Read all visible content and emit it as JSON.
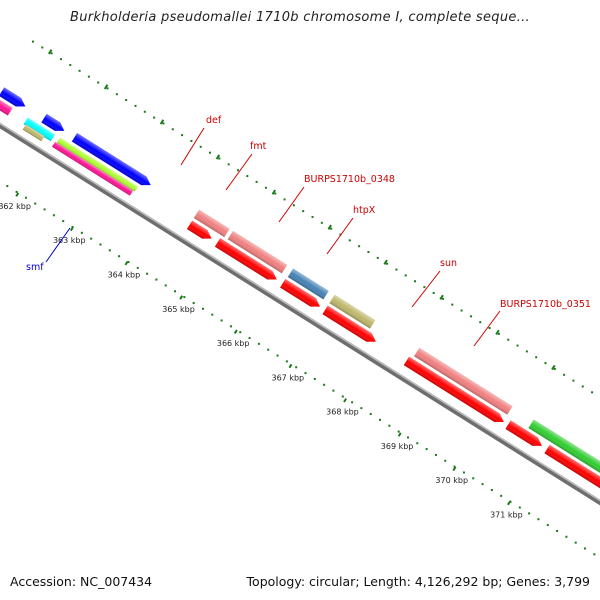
{
  "title": "Burkholderia pseudomallei 1710b chromosome I, complete seque...",
  "footer": {
    "accession_label": "Accession:",
    "accession": "NC_007434",
    "topology_label": "Topology:",
    "topology": "circular",
    "length_label": "Length:",
    "length": "4,126,292 bp",
    "genes_label": "Genes:",
    "genes": "3,799"
  },
  "colors": {
    "red": "#ff0000",
    "pink": "#f08080",
    "blue": "#0000ff",
    "steel": "#4682b4",
    "khaki": "#bdb76b",
    "green": "#32cd32",
    "magenta": "#ff1493",
    "cyan": "#00ffff",
    "lime": "#adff2f",
    "tick": "#1a7a1a",
    "label_red": "#cc0000",
    "label_blue": "#0000cc",
    "backbone": "#808080"
  },
  "ticks": [
    {
      "kbp": 362,
      "label": "362 kbp"
    },
    {
      "kbp": 363,
      "label": "363 kbp"
    },
    {
      "kbp": 364,
      "label": "364 kbp"
    },
    {
      "kbp": 365,
      "label": "365 kbp"
    },
    {
      "kbp": 366,
      "label": "366 kbp"
    },
    {
      "kbp": 367,
      "label": "367 kbp"
    },
    {
      "kbp": 368,
      "label": "368 kbp"
    },
    {
      "kbp": 369,
      "label": "369 kbp"
    },
    {
      "kbp": 370,
      "label": "370 kbp"
    },
    {
      "kbp": 371,
      "label": "371 kbp"
    }
  ],
  "gene_labels": [
    {
      "text": "def",
      "color": "label_red"
    },
    {
      "text": "fmt",
      "color": "label_red"
    },
    {
      "text": "BURPS1710b_0348",
      "color": "label_red"
    },
    {
      "text": "htpX",
      "color": "label_red"
    },
    {
      "text": "sun",
      "color": "label_red"
    },
    {
      "text": "BURPS1710b_0351",
      "color": "label_red"
    },
    {
      "text": "smf",
      "color": "label_blue"
    }
  ]
}
